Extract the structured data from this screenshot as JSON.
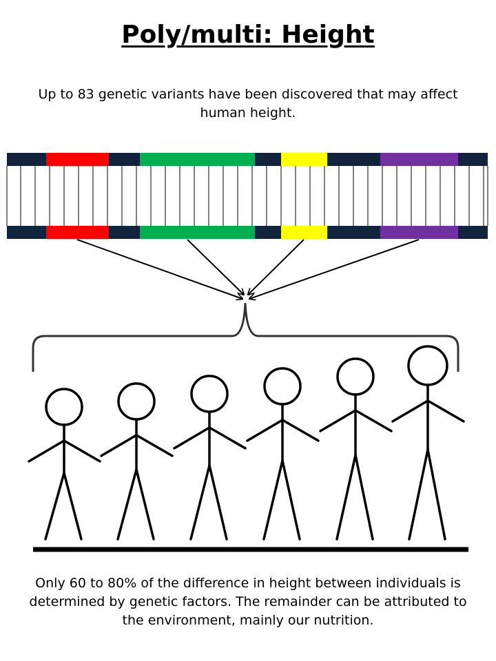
{
  "title": "Poly/multi: Height",
  "intro_text": "Up to 83 genetic variants have been discovered that may affect human height.",
  "outro_text": "Only 60 to 80% of the difference in height between individuals is determined by genetic factors. The remainder can be attributed to the environment, mainly our nutrition.",
  "colors": {
    "backbone": "#12233d",
    "variant_red": "#ff0000",
    "variant_green": "#00b050",
    "variant_yellow": "#ffff00",
    "variant_purple": "#7030a0",
    "ink": "#000000"
  },
  "dna": {
    "segments": [
      "backbone",
      "variant_red",
      "backbone",
      "variant_green",
      "backbone",
      "variant_yellow",
      "backbone",
      "variant_purple",
      "backbone"
    ]
  },
  "people": {
    "count": 6,
    "relative_heights": [
      1,
      2,
      3,
      4,
      5,
      6
    ]
  }
}
